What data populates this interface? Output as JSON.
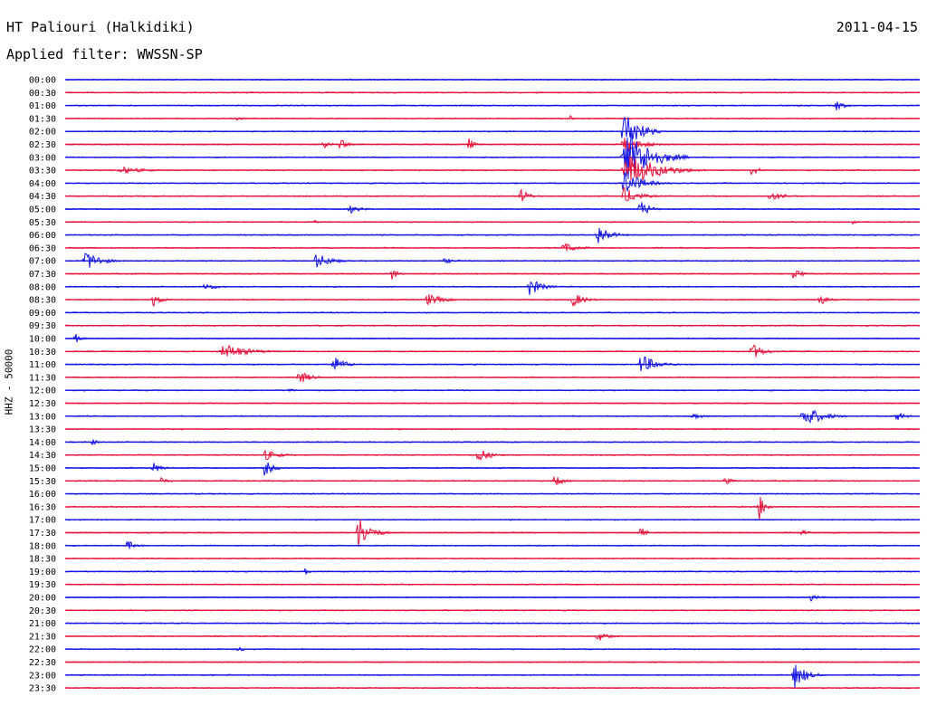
{
  "header": {
    "station": "HT Paliouri (Halkidiki)",
    "date": "2011-04-15",
    "filter_label": "Applied filter:",
    "filter_value": "WWSSN-SP"
  },
  "chart_data": {
    "type": "line",
    "title": "HT Paliouri (Halkidiki)",
    "subtitle": "Applied filter: WWSSN-SP",
    "ylabel": "HHZ - 50000",
    "xlabel": "",
    "colors": {
      "even_rows": "#1414e6",
      "odd_rows": "#e6143c"
    },
    "row_labels": [
      "00:00",
      "00:30",
      "01:00",
      "01:30",
      "02:00",
      "02:30",
      "03:00",
      "03:30",
      "04:00",
      "04:30",
      "05:00",
      "05:30",
      "06:00",
      "06:30",
      "07:00",
      "07:30",
      "08:00",
      "08:30",
      "09:00",
      "09:30",
      "10:00",
      "10:30",
      "11:00",
      "11:30",
      "12:00",
      "12:30",
      "13:00",
      "13:30",
      "14:00",
      "14:30",
      "15:00",
      "15:30",
      "16:00",
      "16:30",
      "17:00",
      "17:30",
      "18:00",
      "18:30",
      "19:00",
      "19:30",
      "20:00",
      "20:30",
      "21:00",
      "21:30",
      "22:00",
      "22:30",
      "23:00",
      "23:30"
    ],
    "events": [
      {
        "row": 2,
        "at": 0.9,
        "amp": 6,
        "dur": 0.03
      },
      {
        "row": 3,
        "at": 0.2,
        "amp": 3,
        "dur": 0.02
      },
      {
        "row": 3,
        "at": 0.59,
        "amp": 5,
        "dur": 0.01
      },
      {
        "row": 4,
        "at": 0.65,
        "amp": 26,
        "dur": 0.05
      },
      {
        "row": 5,
        "at": 0.3,
        "amp": 7,
        "dur": 0.02
      },
      {
        "row": 5,
        "at": 0.32,
        "amp": 8,
        "dur": 0.02
      },
      {
        "row": 5,
        "at": 0.47,
        "amp": 8,
        "dur": 0.02
      },
      {
        "row": 5,
        "at": 0.65,
        "amp": 10,
        "dur": 0.06
      },
      {
        "row": 6,
        "at": 0.65,
        "amp": 34,
        "dur": 0.08
      },
      {
        "row": 7,
        "at": 0.65,
        "amp": 20,
        "dur": 0.1
      },
      {
        "row": 7,
        "at": 0.8,
        "amp": 6,
        "dur": 0.03
      },
      {
        "row": 7,
        "at": 0.06,
        "amp": 4,
        "dur": 0.08
      },
      {
        "row": 8,
        "at": 0.65,
        "amp": 14,
        "dur": 0.06
      },
      {
        "row": 9,
        "at": 0.53,
        "amp": 9,
        "dur": 0.03
      },
      {
        "row": 9,
        "at": 0.65,
        "amp": 10,
        "dur": 0.05
      },
      {
        "row": 9,
        "at": 0.82,
        "amp": 5,
        "dur": 0.06
      },
      {
        "row": 10,
        "at": 0.33,
        "amp": 5,
        "dur": 0.04
      },
      {
        "row": 10,
        "at": 0.67,
        "amp": 11,
        "dur": 0.03
      },
      {
        "row": 11,
        "at": 0.29,
        "amp": 4,
        "dur": 0.01
      },
      {
        "row": 11,
        "at": 0.92,
        "amp": 4,
        "dur": 0.01
      },
      {
        "row": 12,
        "at": 0.62,
        "amp": 13,
        "dur": 0.04
      },
      {
        "row": 13,
        "at": 0.58,
        "amp": 6,
        "dur": 0.05
      },
      {
        "row": 14,
        "at": 0.02,
        "amp": 12,
        "dur": 0.05
      },
      {
        "row": 14,
        "at": 0.29,
        "amp": 9,
        "dur": 0.05
      },
      {
        "row": 14,
        "at": 0.44,
        "amp": 3,
        "dur": 0.05
      },
      {
        "row": 15,
        "at": 0.38,
        "amp": 8,
        "dur": 0.02
      },
      {
        "row": 15,
        "at": 0.85,
        "amp": 7,
        "dur": 0.03
      },
      {
        "row": 16,
        "at": 0.16,
        "amp": 5,
        "dur": 0.04
      },
      {
        "row": 16,
        "at": 0.54,
        "amp": 11,
        "dur": 0.04
      },
      {
        "row": 17,
        "at": 0.1,
        "amp": 8,
        "dur": 0.03
      },
      {
        "row": 17,
        "at": 0.42,
        "amp": 7,
        "dur": 0.05
      },
      {
        "row": 17,
        "at": 0.59,
        "amp": 9,
        "dur": 0.04
      },
      {
        "row": 17,
        "at": 0.88,
        "amp": 7,
        "dur": 0.03
      },
      {
        "row": 20,
        "at": 0.01,
        "amp": 6,
        "dur": 0.02
      },
      {
        "row": 21,
        "at": 0.18,
        "amp": 9,
        "dur": 0.08
      },
      {
        "row": 21,
        "at": 0.8,
        "amp": 10,
        "dur": 0.04
      },
      {
        "row": 22,
        "at": 0.31,
        "amp": 10,
        "dur": 0.04
      },
      {
        "row": 22,
        "at": 0.67,
        "amp": 12,
        "dur": 0.05
      },
      {
        "row": 23,
        "at": 0.27,
        "amp": 8,
        "dur": 0.04
      },
      {
        "row": 24,
        "at": 0.26,
        "amp": 3,
        "dur": 0.02
      },
      {
        "row": 26,
        "at": 0.73,
        "amp": 4,
        "dur": 0.04
      },
      {
        "row": 26,
        "at": 0.86,
        "amp": 13,
        "dur": 0.06
      },
      {
        "row": 26,
        "at": 0.97,
        "amp": 6,
        "dur": 0.03
      },
      {
        "row": 28,
        "at": 0.03,
        "amp": 4,
        "dur": 0.02
      },
      {
        "row": 29,
        "at": 0.23,
        "amp": 6,
        "dur": 0.05
      },
      {
        "row": 29,
        "at": 0.48,
        "amp": 9,
        "dur": 0.04
      },
      {
        "row": 30,
        "at": 0.1,
        "amp": 7,
        "dur": 0.03
      },
      {
        "row": 30,
        "at": 0.23,
        "amp": 10,
        "dur": 0.03
      },
      {
        "row": 31,
        "at": 0.11,
        "amp": 4,
        "dur": 0.03
      },
      {
        "row": 31,
        "at": 0.57,
        "amp": 7,
        "dur": 0.03
      },
      {
        "row": 31,
        "at": 0.77,
        "amp": 6,
        "dur": 0.02
      },
      {
        "row": 33,
        "at": 0.81,
        "amp": 18,
        "dur": 0.02
      },
      {
        "row": 35,
        "at": 0.34,
        "amp": 20,
        "dur": 0.04
      },
      {
        "row": 35,
        "at": 0.67,
        "amp": 9,
        "dur": 0.02
      },
      {
        "row": 35,
        "at": 0.86,
        "amp": 4,
        "dur": 0.02
      },
      {
        "row": 36,
        "at": 0.07,
        "amp": 6,
        "dur": 0.03
      },
      {
        "row": 38,
        "at": 0.28,
        "amp": 7,
        "dur": 0.01
      },
      {
        "row": 40,
        "at": 0.87,
        "amp": 5,
        "dur": 0.03
      },
      {
        "row": 43,
        "at": 0.62,
        "amp": 6,
        "dur": 0.04
      },
      {
        "row": 44,
        "at": 0.2,
        "amp": 4,
        "dur": 0.02
      },
      {
        "row": 46,
        "at": 0.85,
        "amp": 16,
        "dur": 0.04
      }
    ]
  }
}
